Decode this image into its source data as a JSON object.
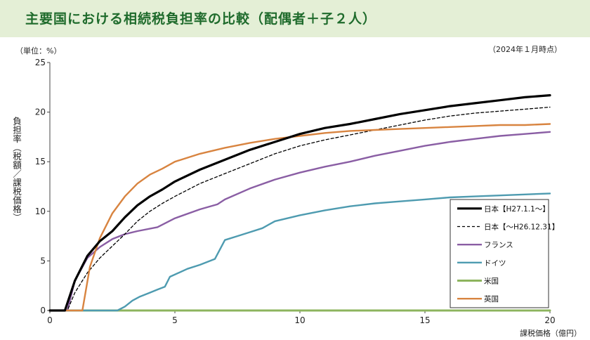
{
  "title": "主要国における相続税負担率の比較（配偶者＋子２人）",
  "chart_data": {
    "type": "line",
    "unit_label": "（単位：%）",
    "as_of": "（2024年１月時点）",
    "ylabel": "負担率（税額／課税価格）",
    "xlabel": "課税価格（億円）",
    "xlim": [
      0,
      20
    ],
    "ylim": [
      0,
      25
    ],
    "x_ticks": [
      0,
      5,
      10,
      15,
      20
    ],
    "y_ticks": [
      0,
      5,
      10,
      15,
      20,
      25
    ],
    "grid": false,
    "legend_position": "bottom-right",
    "series": [
      {
        "name": "日本【H27.1.1～】",
        "color": "#000000",
        "dash": "solid",
        "width": 3.2,
        "points": [
          [
            0,
            0
          ],
          [
            0.6,
            0
          ],
          [
            1,
            3
          ],
          [
            1.5,
            5.5
          ],
          [
            2,
            7
          ],
          [
            2.5,
            8
          ],
          [
            3,
            9.4
          ],
          [
            3.5,
            10.6
          ],
          [
            4,
            11.5
          ],
          [
            4.5,
            12.2
          ],
          [
            5,
            13
          ],
          [
            6,
            14.2
          ],
          [
            7,
            15.2
          ],
          [
            8,
            16.2
          ],
          [
            9,
            17
          ],
          [
            10,
            17.8
          ],
          [
            11,
            18.4
          ],
          [
            12,
            18.8
          ],
          [
            13,
            19.3
          ],
          [
            14,
            19.8
          ],
          [
            15,
            20.2
          ],
          [
            16,
            20.6
          ],
          [
            17,
            20.9
          ],
          [
            18,
            21.2
          ],
          [
            19,
            21.5
          ],
          [
            20,
            21.7
          ]
        ]
      },
      {
        "name": "日本【～H26.12.31】",
        "color": "#000000",
        "dash": "dashed",
        "width": 1.3,
        "points": [
          [
            0,
            0
          ],
          [
            0.7,
            0
          ],
          [
            1,
            1.8
          ],
          [
            1.5,
            3.8
          ],
          [
            2,
            5.3
          ],
          [
            2.5,
            6.5
          ],
          [
            3,
            7.7
          ],
          [
            3.5,
            9
          ],
          [
            4,
            10
          ],
          [
            4.5,
            10.8
          ],
          [
            5,
            11.5
          ],
          [
            6,
            12.8
          ],
          [
            7,
            13.8
          ],
          [
            8,
            14.8
          ],
          [
            9,
            15.8
          ],
          [
            10,
            16.6
          ],
          [
            11,
            17.2
          ],
          [
            12,
            17.7
          ],
          [
            13,
            18.2
          ],
          [
            14,
            18.7
          ],
          [
            15,
            19.2
          ],
          [
            16,
            19.6
          ],
          [
            17,
            19.9
          ],
          [
            18,
            20.1
          ],
          [
            19,
            20.3
          ],
          [
            20,
            20.5
          ]
        ]
      },
      {
        "name": "フランス",
        "color": "#8a5ea4",
        "dash": "solid",
        "width": 2.4,
        "points": [
          [
            0,
            0
          ],
          [
            0.7,
            0
          ],
          [
            1,
            3
          ],
          [
            1.5,
            5.3
          ],
          [
            2,
            6.4
          ],
          [
            2.5,
            7.2
          ],
          [
            3,
            7.7
          ],
          [
            3.5,
            8
          ],
          [
            4.3,
            8.4
          ],
          [
            5,
            9.3
          ],
          [
            6,
            10.2
          ],
          [
            6.7,
            10.7
          ],
          [
            7,
            11.2
          ],
          [
            8,
            12.3
          ],
          [
            9,
            13.2
          ],
          [
            10,
            13.9
          ],
          [
            11,
            14.5
          ],
          [
            12,
            15
          ],
          [
            13,
            15.6
          ],
          [
            14,
            16.1
          ],
          [
            15,
            16.6
          ],
          [
            16,
            17
          ],
          [
            17,
            17.3
          ],
          [
            18,
            17.6
          ],
          [
            19,
            17.8
          ],
          [
            20,
            18
          ]
        ]
      },
      {
        "name": "ドイツ",
        "color": "#4e9bb0",
        "dash": "solid",
        "width": 2.4,
        "points": [
          [
            0,
            0
          ],
          [
            2.7,
            0
          ],
          [
            3,
            0.4
          ],
          [
            3.3,
            1
          ],
          [
            3.6,
            1.4
          ],
          [
            4,
            1.8
          ],
          [
            4.3,
            2.1
          ],
          [
            4.6,
            2.4
          ],
          [
            4.8,
            3.4
          ],
          [
            5.5,
            4.2
          ],
          [
            6,
            4.6
          ],
          [
            6.6,
            5.2
          ],
          [
            7,
            7.1
          ],
          [
            7.5,
            7.5
          ],
          [
            8,
            7.9
          ],
          [
            8.5,
            8.3
          ],
          [
            9,
            9
          ],
          [
            10,
            9.6
          ],
          [
            11,
            10.1
          ],
          [
            12,
            10.5
          ],
          [
            13,
            10.8
          ],
          [
            14,
            11
          ],
          [
            15,
            11.2
          ],
          [
            16,
            11.4
          ],
          [
            17,
            11.5
          ],
          [
            18,
            11.6
          ],
          [
            19,
            11.7
          ],
          [
            20,
            11.8
          ]
        ]
      },
      {
        "name": "米国",
        "color": "#8db45e",
        "dash": "solid",
        "width": 3,
        "points": [
          [
            0,
            0
          ],
          [
            20,
            0
          ]
        ]
      },
      {
        "name": "英国",
        "color": "#d88440",
        "dash": "solid",
        "width": 2.4,
        "points": [
          [
            0,
            0
          ],
          [
            1.3,
            0
          ],
          [
            1.6,
            4.4
          ],
          [
            2,
            7.3
          ],
          [
            2.5,
            9.8
          ],
          [
            3,
            11.5
          ],
          [
            3.5,
            12.8
          ],
          [
            4,
            13.7
          ],
          [
            4.5,
            14.3
          ],
          [
            5,
            15
          ],
          [
            6,
            15.8
          ],
          [
            7,
            16.4
          ],
          [
            8,
            16.9
          ],
          [
            9,
            17.3
          ],
          [
            10,
            17.6
          ],
          [
            11,
            17.9
          ],
          [
            12,
            18.1
          ],
          [
            13,
            18.2
          ],
          [
            14,
            18.3
          ],
          [
            15,
            18.4
          ],
          [
            16,
            18.5
          ],
          [
            17,
            18.6
          ],
          [
            18,
            18.7
          ],
          [
            19,
            18.7
          ],
          [
            20,
            18.8
          ]
        ]
      }
    ]
  }
}
